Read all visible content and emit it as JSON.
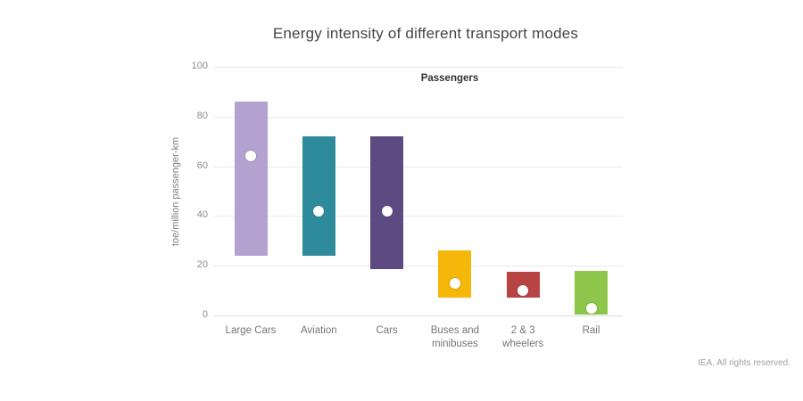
{
  "title": "Energy intensity of different transport modes",
  "footer": {
    "note": "IEA. All rights reserved."
  },
  "chart_data": {
    "type": "bar",
    "subtype": "floating-range-bars-with-average-marker",
    "title": "Energy intensity of different transport modes",
    "series_label": "Passengers",
    "xlabel": "",
    "ylabel": "toe/million passenger-km",
    "ylim": [
      0,
      100
    ],
    "yticks": [
      0,
      20,
      40,
      60,
      80,
      100
    ],
    "grid": true,
    "legend": false,
    "categories": [
      "Large Cars",
      "Aviation",
      "Cars",
      "Buses and minibuses",
      "2 & 3 wheelers",
      "Rail"
    ],
    "category_label_lines": [
      [
        "Large Cars"
      ],
      [
        "Aviation"
      ],
      [
        "Cars"
      ],
      [
        "Buses and",
        "minibuses"
      ],
      [
        "2 & 3",
        "wheelers"
      ],
      [
        "Rail"
      ]
    ],
    "series": [
      {
        "name": "range-low",
        "values": [
          24,
          24,
          18.5,
          7,
          7,
          0.5
        ]
      },
      {
        "name": "range-high",
        "values": [
          86,
          72,
          72,
          26,
          17.5,
          18
        ]
      },
      {
        "name": "average-marker",
        "values": [
          64,
          42,
          42,
          13,
          10,
          3
        ]
      }
    ],
    "bar_colors": [
      "#b3a2cf",
      "#2e8b9c",
      "#5c4a80",
      "#f5b70a",
      "#b84343",
      "#8dc64a"
    ],
    "marker_color": "#ffffff"
  }
}
